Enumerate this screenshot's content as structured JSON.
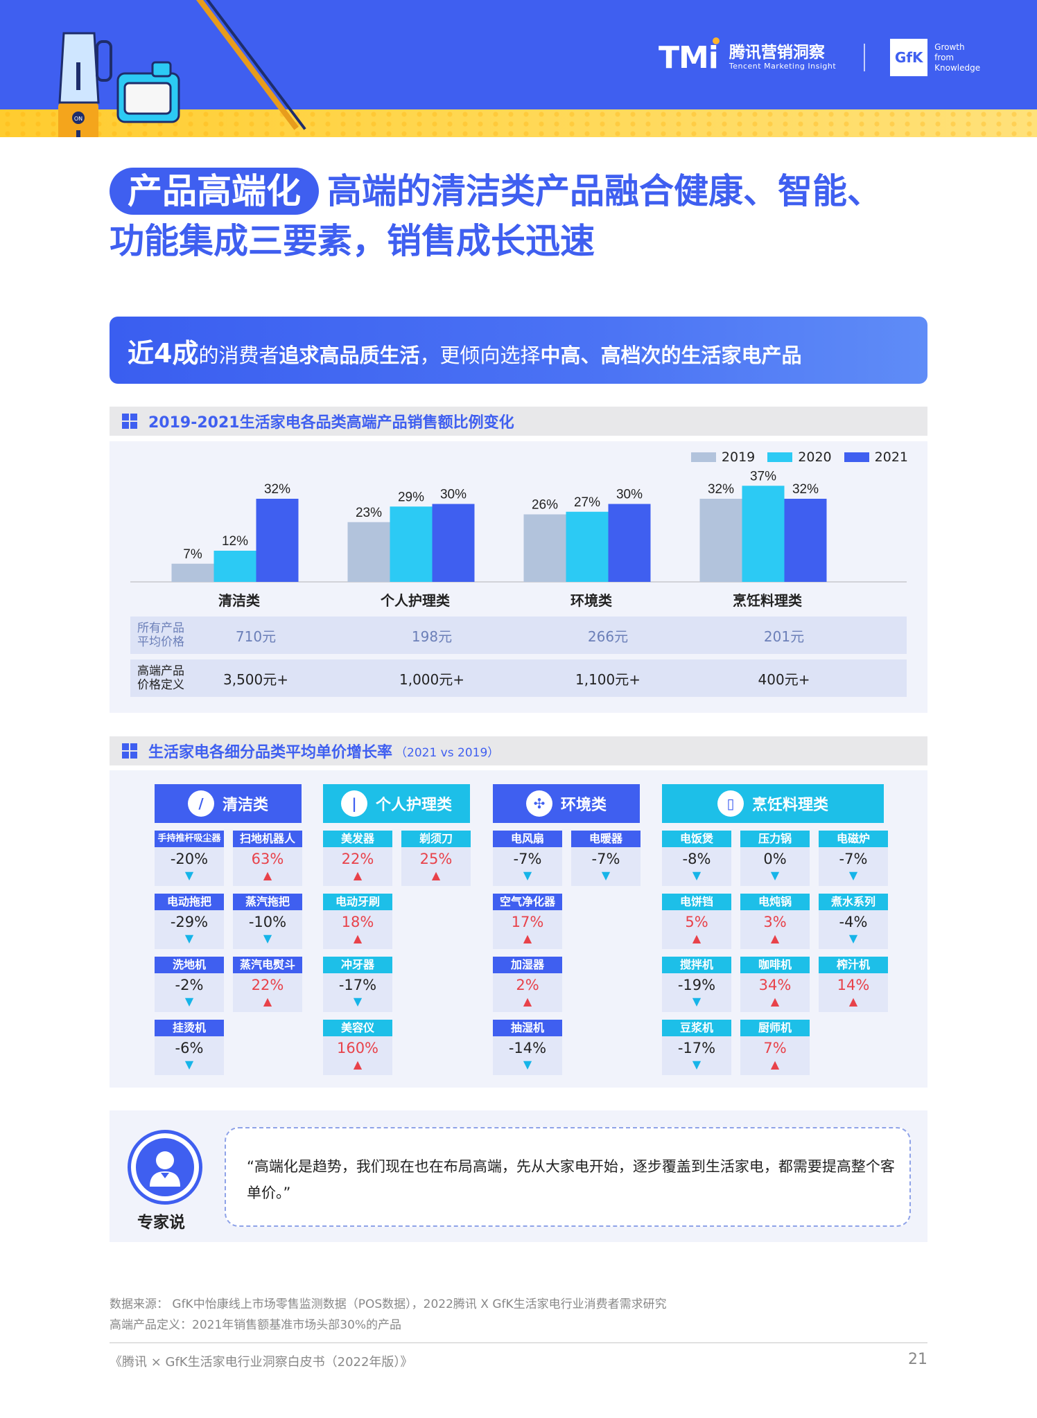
{
  "header": {
    "tmi_logo": "TMi",
    "tmi_cn": "腾讯营销洞察",
    "tmi_en": "Tencent Marketing Insight",
    "gfk_logo": "GfK",
    "gfk_tagline_1": "Growth",
    "gfk_tagline_2": "from",
    "gfk_tagline_3": "Knowledge",
    "colors": {
      "blue": "#3f5ff0",
      "yellow": "#ffcc2f"
    }
  },
  "title": {
    "pill": "产品高端化",
    "line1": "高端的清洁类产品融合健康、智能、",
    "line2": "功能集成三要素，销售成长迅速"
  },
  "highlight": {
    "big": "近4成",
    "t1": "的消费者",
    "b1": "追求高品质生活",
    "t2": "，更倾向选择",
    "b2": "中高、高档次的生活家电产品"
  },
  "section1": {
    "title": "2019-2021生活家电各品类高端产品销售额比例变化"
  },
  "chart_data": {
    "type": "bar",
    "categories": [
      "清洁类",
      "个人护理类",
      "环境类",
      "烹饪料理类"
    ],
    "series": [
      {
        "name": "2019",
        "values": [
          7,
          23,
          26,
          32
        ],
        "labels": [
          "7%",
          "23%",
          "26%",
          "32%"
        ],
        "color": "#b2c3dc"
      },
      {
        "name": "2020",
        "values": [
          12,
          29,
          27,
          37
        ],
        "labels": [
          "12%",
          "29%",
          "27%",
          "37%"
        ],
        "color": "#2ccaf4"
      },
      {
        "name": "2021",
        "values": [
          32,
          30,
          30,
          32
        ],
        "labels": [
          "32%",
          "30%",
          "30%",
          "32%"
        ],
        "color": "#3f5ff0"
      }
    ],
    "ylim": [
      0,
      40
    ],
    "legend": "top-right"
  },
  "price_rows": [
    {
      "label1": "所有产品",
      "label2": "平均价格",
      "values": [
        "710元",
        "198元",
        "266元",
        "201元"
      ]
    },
    {
      "label1": "高端产品",
      "label2": "价格定义",
      "values": [
        "3,500元+",
        "1,000元+",
        "1,100元+",
        "400元+"
      ]
    }
  ],
  "section2": {
    "title": "生活家电各细分品类平均单价增长率",
    "sub": "（2021 vs 2019）"
  },
  "groups": [
    {
      "name": "清洁类",
      "icon": "vacuum-icon",
      "color": "#3f5ff0",
      "columns": [
        [
          {
            "n": "手持推杆吸尘器",
            "v": "-20%",
            "d": "down"
          },
          {
            "n": "电动拖把",
            "v": "-29%",
            "d": "down"
          },
          {
            "n": "洗地机",
            "v": "-2%",
            "d": "down"
          },
          {
            "n": "挂烫机",
            "v": "-6%",
            "d": "down"
          }
        ],
        [
          {
            "n": "扫地机器人",
            "v": "63%",
            "d": "up"
          },
          {
            "n": "蒸汽拖把",
            "v": "-10%",
            "d": "down"
          },
          {
            "n": "蒸汽电熨斗",
            "v": "22%",
            "d": "up"
          }
        ]
      ]
    },
    {
      "name": "个人护理类",
      "icon": "razor-icon",
      "color": "#1dbfe8",
      "columns": [
        [
          {
            "n": "美发器",
            "v": "22%",
            "d": "up"
          },
          {
            "n": "电动牙刷",
            "v": "18%",
            "d": "up"
          },
          {
            "n": "冲牙器",
            "v": "-17%",
            "d": "down"
          },
          {
            "n": "美容仪",
            "v": "160%",
            "d": "up"
          }
        ],
        [
          {
            "n": "剃须刀",
            "v": "25%",
            "d": "up"
          }
        ]
      ]
    },
    {
      "name": "环境类",
      "icon": "fan-icon",
      "color": "#3f5ff0",
      "columns": [
        [
          {
            "n": "电风扇",
            "v": "-7%",
            "d": "down"
          },
          {
            "n": "空气净化器",
            "v": "17%",
            "d": "up"
          },
          {
            "n": "加湿器",
            "v": "2%",
            "d": "up"
          },
          {
            "n": "抽湿机",
            "v": "-14%",
            "d": "down"
          }
        ],
        [
          {
            "n": "电暖器",
            "v": "-7%",
            "d": "down"
          }
        ]
      ]
    },
    {
      "name": "烹饪料理类",
      "icon": "blender-icon",
      "color": "#1dbfe8",
      "columns": [
        [
          {
            "n": "电饭煲",
            "v": "-8%",
            "d": "down"
          },
          {
            "n": "电饼铛",
            "v": "5%",
            "d": "up"
          },
          {
            "n": "搅拌机",
            "v": "-19%",
            "d": "down"
          },
          {
            "n": "豆浆机",
            "v": "-17%",
            "d": "down"
          }
        ],
        [
          {
            "n": "压力锅",
            "v": "0%",
            "d": "down"
          },
          {
            "n": "电炖锅",
            "v": "3%",
            "d": "up"
          },
          {
            "n": "咖啡机",
            "v": "34%",
            "d": "up"
          },
          {
            "n": "厨师机",
            "v": "7%",
            "d": "up"
          }
        ],
        [
          {
            "n": "电磁炉",
            "v": "-7%",
            "d": "down"
          },
          {
            "n": "煮水系列",
            "v": "-4%",
            "d": "down"
          },
          {
            "n": "榨汁机",
            "v": "14%",
            "d": "up"
          }
        ]
      ]
    }
  ],
  "expert": {
    "label": "专家说",
    "quote": "“高端化是趋势，我们现在也在布局高端，先从大家电开始，逐步覆盖到生活家电，都需要提高整个客单价。”"
  },
  "source": {
    "line1": "数据来源： GfK中怡康线上市场零售监测数据（POS数据），2022腾讯 X GfK生活家电行业消费者需求研究",
    "line2": "高端产品定义：2021年销售额基准市场头部30%的产品"
  },
  "footer": {
    "doc_title": "《腾讯 × GfK生活家电行业洞察白皮书（2022年版）》",
    "page": "21"
  }
}
